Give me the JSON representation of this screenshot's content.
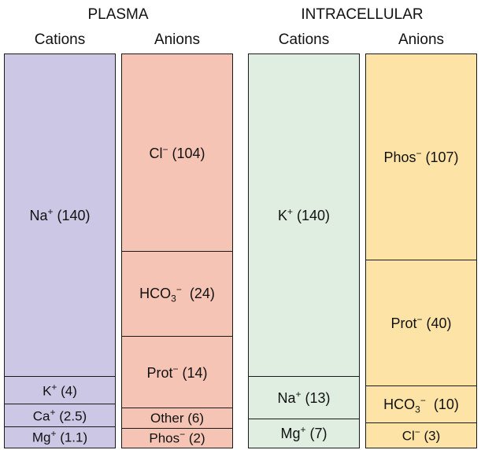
{
  "headers": {
    "plasma": "PLASMA",
    "intracellular": "INTRACELLULAR",
    "plasma_cations": "Cations",
    "plasma_anions": "Anions",
    "intra_cations": "Cations",
    "intra_anions": "Anions"
  },
  "colors": {
    "plasma_cations": "#cdc7e6",
    "plasma_anions": "#f5c4b4",
    "intra_cations": "#dfeee0",
    "intra_anions": "#fde4a6"
  },
  "columns": {
    "plasma_cations": [
      {
        "base": "Na",
        "charge": "+",
        "value": "(140)"
      },
      {
        "base": "K",
        "charge": "+",
        "value": "(4)"
      },
      {
        "base": "Ca",
        "charge": "+",
        "value": "(2.5)"
      },
      {
        "base": "Mg",
        "charge": "+",
        "value": "(1.1)"
      }
    ],
    "plasma_anions": [
      {
        "base": "Cl",
        "charge": "−",
        "value": "(104)"
      },
      {
        "base": "HCO",
        "sub": "3",
        "charge": "−",
        "value": "(24)"
      },
      {
        "base": "Prot",
        "charge": "−",
        "value": "(14)"
      },
      {
        "base": "Other",
        "value": "(6)"
      },
      {
        "base": "Phos",
        "charge": "−",
        "value": "(2)"
      }
    ],
    "intra_cations": [
      {
        "base": "K",
        "charge": "+",
        "value": "(140)"
      },
      {
        "base": "Na",
        "charge": "+",
        "value": "(13)"
      },
      {
        "base": "Mg",
        "charge": "+",
        "value": "(7)"
      }
    ],
    "intra_anions": [
      {
        "base": "Phos",
        "charge": "−",
        "value": "(107)"
      },
      {
        "base": "Prot",
        "charge": "−",
        "value": "(40)"
      },
      {
        "base": "HCO",
        "sub": "3",
        "charge": "−",
        "value": "(10)"
      },
      {
        "base": "Cl",
        "charge": "−",
        "value": "(3)"
      }
    ]
  }
}
